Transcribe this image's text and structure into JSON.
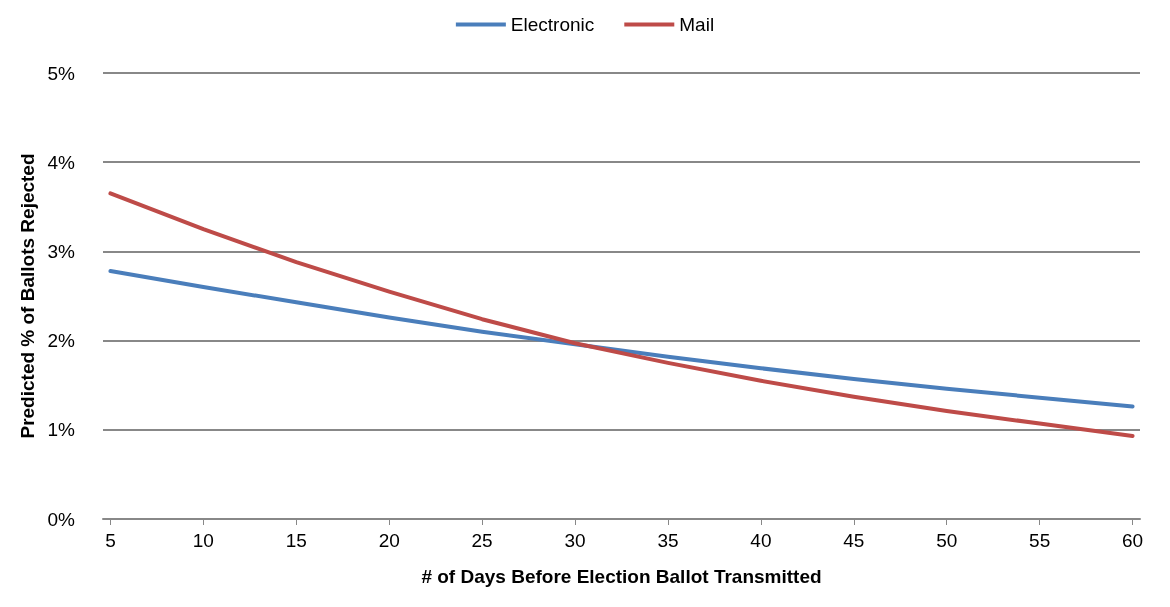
{
  "chart_data": {
    "type": "line",
    "xlabel": "# of Days Before Election Ballot Transmitted",
    "ylabel": "Predicted % of Ballots Rejected",
    "x": [
      5,
      10,
      15,
      20,
      25,
      30,
      35,
      40,
      45,
      50,
      55,
      60
    ],
    "series": [
      {
        "name": "Electronic",
        "color": "#4a7ebb",
        "values": [
          2.78,
          2.6,
          2.43,
          2.26,
          2.1,
          1.96,
          1.82,
          1.69,
          1.57,
          1.46,
          1.36,
          1.26
        ]
      },
      {
        "name": "Mail",
        "color": "#be4b48",
        "values": [
          3.65,
          3.25,
          2.88,
          2.55,
          2.24,
          1.97,
          1.75,
          1.55,
          1.37,
          1.21,
          1.07,
          0.93
        ]
      }
    ],
    "xlim": [
      4.6,
      60.4
    ],
    "xticks": [
      5,
      10,
      15,
      20,
      25,
      30,
      35,
      40,
      45,
      50,
      55,
      60
    ],
    "ylim": [
      0,
      5
    ],
    "yticks": [
      {
        "value": 0,
        "label": "0%"
      },
      {
        "value": 1,
        "label": "1%"
      },
      {
        "value": 2,
        "label": "2%"
      },
      {
        "value": 3,
        "label": "3%"
      },
      {
        "value": 4,
        "label": "4%"
      },
      {
        "value": 5,
        "label": "5%"
      }
    ],
    "grid": "y",
    "legend": "top",
    "marker": "none",
    "line_style": "solid"
  }
}
